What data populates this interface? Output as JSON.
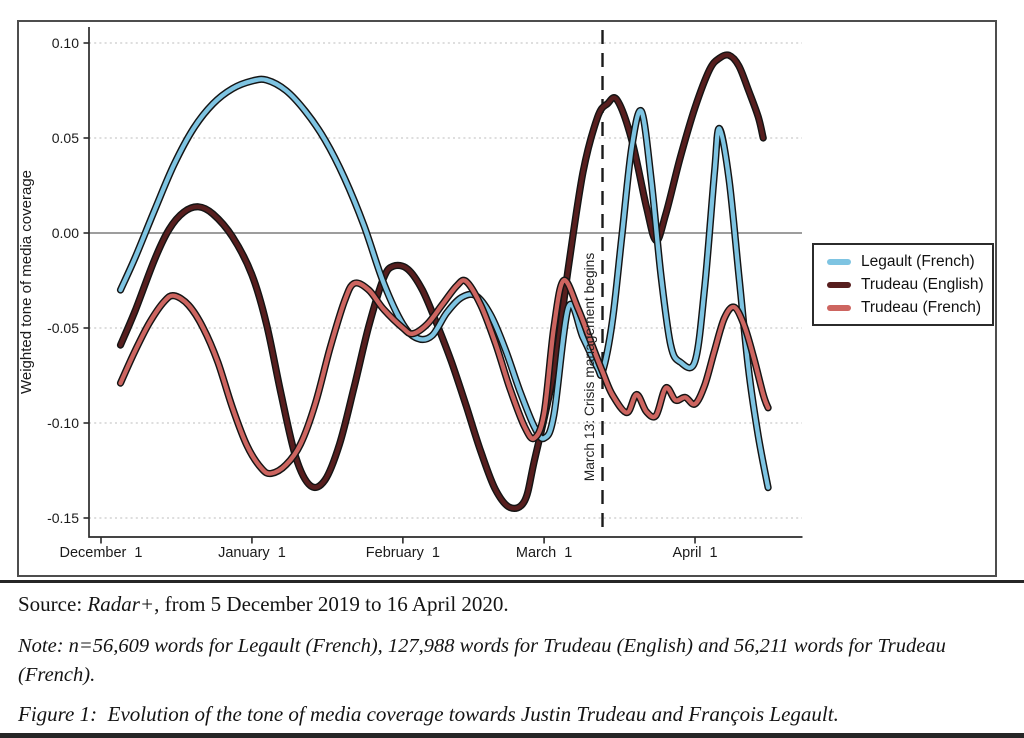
{
  "figure": {
    "caption_source": {
      "prefix": "Source: ",
      "italic": "Radar+",
      "rest": ", from 5 December 2019 to 16 April 2020."
    },
    "caption_note": "Note: n=56,609 words for Legault (French), 127,988 words for Trudeau (English) and 56,211 words for Trudeau (French).",
    "caption_figure": "Figure 1: Evolution of the tone of media coverage towards Justin Trudeau and François Legault."
  },
  "chart_data": {
    "type": "line",
    "title": "",
    "xlabel": "",
    "ylabel": "Weighted tone of media coverage",
    "x_unit": "days since 1 December 2019 (data span 5 Dec 2019 to 16 Apr 2020)",
    "ylim": [
      -0.16,
      0.105
    ],
    "grid": "horizontal dotted",
    "legend_position": "right",
    "y_ticks": [
      {
        "value": 0.1,
        "label": "0.10"
      },
      {
        "value": 0.05,
        "label": "0.05"
      },
      {
        "value": 0.0,
        "label": "0.00"
      },
      {
        "value": -0.05,
        "label": "-0.05"
      },
      {
        "value": -0.1,
        "label": "-0.10"
      },
      {
        "value": -0.15,
        "label": "-0.15"
      }
    ],
    "x_ticks": [
      {
        "day": 0,
        "label": "December  1"
      },
      {
        "day": 31,
        "label": "January  1"
      },
      {
        "day": 62,
        "label": "February  1"
      },
      {
        "day": 91,
        "label": "March  1"
      },
      {
        "day": 122,
        "label": "April  1"
      }
    ],
    "annotation": {
      "day": 103,
      "label": "March 13: Crisis management begins"
    },
    "colors": {
      "outline": "#141414",
      "grid": "#c9c9c9",
      "zero_line": "#8f8f8f",
      "axis": "#2b2b2b",
      "annotation": "#1a1a1a"
    },
    "series": [
      {
        "id": "legault-french",
        "name": "Legault (French)",
        "color": "#7EC4E2",
        "points": [
          [
            4,
            -0.03
          ],
          [
            7,
            -0.013
          ],
          [
            11,
            0.012
          ],
          [
            15,
            0.036
          ],
          [
            19,
            0.055
          ],
          [
            23,
            0.068
          ],
          [
            27,
            0.076
          ],
          [
            31,
            0.08
          ],
          [
            34,
            0.0805
          ],
          [
            38,
            0.075
          ],
          [
            42,
            0.064
          ],
          [
            46,
            0.049
          ],
          [
            50,
            0.029
          ],
          [
            54,
            0.004
          ],
          [
            58,
            -0.026
          ],
          [
            62,
            -0.048
          ],
          [
            65,
            -0.0555
          ],
          [
            68,
            -0.054
          ],
          [
            71,
            -0.042
          ],
          [
            74,
            -0.034
          ],
          [
            77,
            -0.033
          ],
          [
            80,
            -0.043
          ],
          [
            83,
            -0.061
          ],
          [
            86,
            -0.083
          ],
          [
            89,
            -0.102
          ],
          [
            91,
            -0.108
          ],
          [
            93,
            -0.096
          ],
          [
            96,
            -0.039
          ],
          [
            99,
            -0.055
          ],
          [
            102,
            -0.071
          ],
          [
            103,
            -0.073
          ],
          [
            105,
            -0.047
          ],
          [
            107,
            -0.001
          ],
          [
            109,
            0.045
          ],
          [
            111,
            0.064
          ],
          [
            113,
            0.028
          ],
          [
            115,
            -0.022
          ],
          [
            117,
            -0.059
          ],
          [
            119,
            -0.068
          ],
          [
            122,
            -0.0675
          ],
          [
            124,
            -0.028
          ],
          [
            126,
            0.032
          ],
          [
            127,
            0.055
          ],
          [
            129,
            0.028
          ],
          [
            131,
            -0.022
          ],
          [
            133,
            -0.072
          ],
          [
            135,
            -0.107
          ],
          [
            137,
            -0.134
          ]
        ]
      },
      {
        "id": "trudeau-english",
        "name": "Trudeau (English)",
        "color": "#571E1E",
        "points": [
          [
            4,
            -0.059
          ],
          [
            7,
            -0.041
          ],
          [
            11,
            -0.014
          ],
          [
            14,
            0.002
          ],
          [
            17,
            0.011
          ],
          [
            20,
            0.0138
          ],
          [
            23,
            0.01
          ],
          [
            27,
            -0.002
          ],
          [
            31,
            -0.022
          ],
          [
            34,
            -0.048
          ],
          [
            37,
            -0.085
          ],
          [
            40,
            -0.118
          ],
          [
            43,
            -0.133
          ],
          [
            46,
            -0.13
          ],
          [
            49,
            -0.111
          ],
          [
            52,
            -0.081
          ],
          [
            55,
            -0.049
          ],
          [
            58,
            -0.024
          ],
          [
            60,
            -0.0175
          ],
          [
            63,
            -0.019
          ],
          [
            66,
            -0.03
          ],
          [
            69,
            -0.048
          ],
          [
            72,
            -0.068
          ],
          [
            75,
            -0.091
          ],
          [
            78,
            -0.115
          ],
          [
            81,
            -0.135
          ],
          [
            84,
            -0.1445
          ],
          [
            87,
            -0.141
          ],
          [
            89,
            -0.12
          ],
          [
            93,
            -0.073
          ],
          [
            96,
            -0.018
          ],
          [
            99,
            0.032
          ],
          [
            102,
            0.061
          ],
          [
            104,
            0.068
          ],
          [
            106,
            0.07
          ],
          [
            109,
            0.049
          ],
          [
            112,
            0.014
          ],
          [
            114,
            -0.004
          ],
          [
            116,
            0.01
          ],
          [
            119,
            0.04
          ],
          [
            122,
            0.066
          ],
          [
            125,
            0.086
          ],
          [
            127,
            0.092
          ],
          [
            129,
            0.0935
          ],
          [
            131,
            0.088
          ],
          [
            133,
            0.075
          ],
          [
            135,
            0.061
          ],
          [
            136,
            0.05
          ]
        ]
      },
      {
        "id": "trudeau-french",
        "name": "Trudeau (French)",
        "color": "#CD6560",
        "points": [
          [
            4,
            -0.079
          ],
          [
            7,
            -0.062
          ],
          [
            10,
            -0.047
          ],
          [
            13,
            -0.036
          ],
          [
            15,
            -0.033
          ],
          [
            18,
            -0.038
          ],
          [
            21,
            -0.05
          ],
          [
            24,
            -0.068
          ],
          [
            27,
            -0.092
          ],
          [
            30,
            -0.112
          ],
          [
            33,
            -0.124
          ],
          [
            35,
            -0.1265
          ],
          [
            38,
            -0.122
          ],
          [
            41,
            -0.111
          ],
          [
            44,
            -0.09
          ],
          [
            47,
            -0.061
          ],
          [
            50,
            -0.036
          ],
          [
            52,
            -0.0265
          ],
          [
            55,
            -0.03
          ],
          [
            58,
            -0.04
          ],
          [
            62,
            -0.05
          ],
          [
            64,
            -0.053
          ],
          [
            67,
            -0.048
          ],
          [
            70,
            -0.038
          ],
          [
            73,
            -0.028
          ],
          [
            75,
            -0.0255
          ],
          [
            78,
            -0.038
          ],
          [
            81,
            -0.058
          ],
          [
            84,
            -0.082
          ],
          [
            87,
            -0.102
          ],
          [
            89,
            -0.108
          ],
          [
            91,
            -0.095
          ],
          [
            93,
            -0.05
          ],
          [
            95,
            -0.025
          ],
          [
            98,
            -0.04
          ],
          [
            101,
            -0.06
          ],
          [
            103,
            -0.073
          ],
          [
            105,
            -0.085
          ],
          [
            108,
            -0.0945
          ],
          [
            110,
            -0.085
          ],
          [
            112,
            -0.094
          ],
          [
            114,
            -0.096
          ],
          [
            116,
            -0.0815
          ],
          [
            118,
            -0.088
          ],
          [
            120,
            -0.0865
          ],
          [
            122,
            -0.09
          ],
          [
            124,
            -0.08
          ],
          [
            126,
            -0.062
          ],
          [
            128,
            -0.045
          ],
          [
            130,
            -0.039
          ],
          [
            132,
            -0.048
          ],
          [
            134,
            -0.065
          ],
          [
            136,
            -0.085
          ],
          [
            137,
            -0.092
          ]
        ]
      }
    ]
  }
}
